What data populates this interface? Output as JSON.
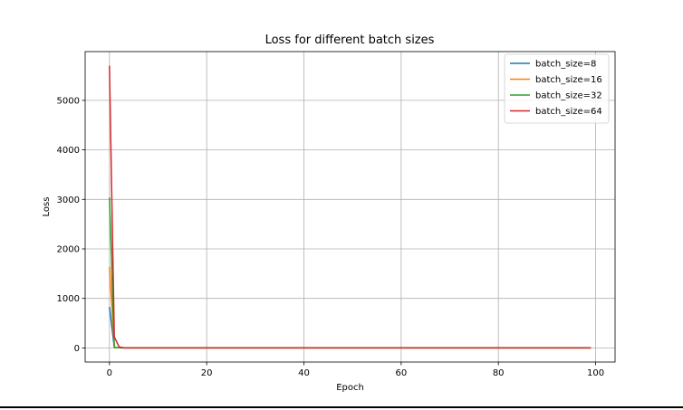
{
  "chart_data": {
    "type": "line",
    "title": "Loss for different batch sizes",
    "xlabel": "Epoch",
    "ylabel": "Loss",
    "xlim": [
      -5,
      104
    ],
    "ylim": [
      -285,
      5985
    ],
    "xticks": [
      0,
      20,
      40,
      60,
      80,
      100
    ],
    "yticks": [
      0,
      1000,
      2000,
      3000,
      4000,
      5000
    ],
    "grid": true,
    "legend_position": "top-right",
    "series": [
      {
        "name": "batch_size=8",
        "color": "#1f77b4",
        "epochs": [
          0,
          1,
          2,
          3,
          99
        ],
        "values": [
          830,
          5,
          2,
          1,
          1
        ]
      },
      {
        "name": "batch_size=16",
        "color": "#ff7f0e",
        "epochs": [
          0,
          1,
          2,
          3,
          99
        ],
        "values": [
          1640,
          8,
          3,
          1,
          1
        ]
      },
      {
        "name": "batch_size=32",
        "color": "#2ca02c",
        "epochs": [
          0,
          1,
          2,
          3,
          99
        ],
        "values": [
          3040,
          10,
          3,
          1,
          1
        ]
      },
      {
        "name": "batch_size=64",
        "color": "#d62728",
        "epochs": [
          0,
          1,
          2,
          3,
          99
        ],
        "values": [
          5700,
          220,
          20,
          2,
          2
        ]
      }
    ]
  }
}
